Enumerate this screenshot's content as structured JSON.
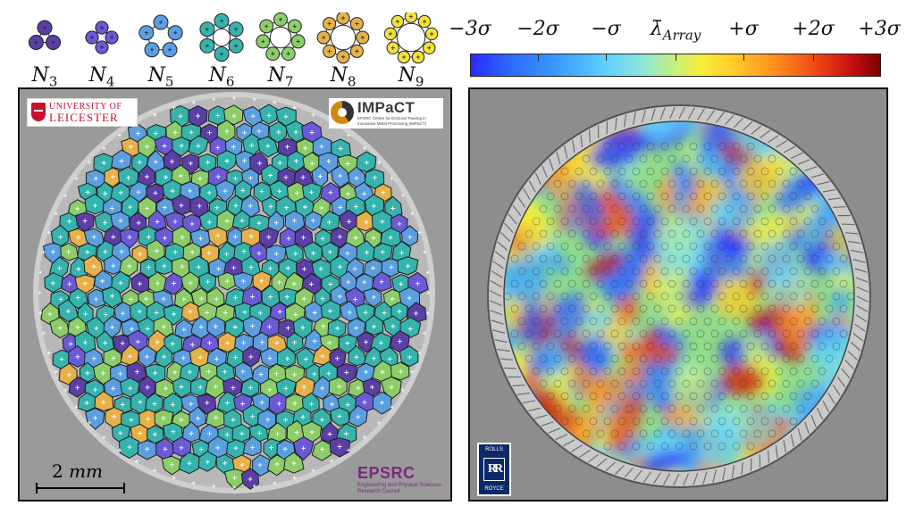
{
  "legend": {
    "items": [
      {
        "letter": "N",
        "sub": "3",
        "n": 3,
        "color": "#5b3fa6"
      },
      {
        "letter": "N",
        "sub": "4",
        "n": 4,
        "color": "#6a5ad6"
      },
      {
        "letter": "N",
        "sub": "5",
        "n": 5,
        "color": "#5b9fe0"
      },
      {
        "letter": "N",
        "sub": "6",
        "n": 6,
        "color": "#37b3ad"
      },
      {
        "letter": "N",
        "sub": "7",
        "n": 7,
        "color": "#8ccd6a"
      },
      {
        "letter": "N",
        "sub": "8",
        "n": 8,
        "color": "#e6b14a"
      },
      {
        "letter": "N",
        "sub": "9",
        "n": 9,
        "color": "#f2e13a"
      }
    ]
  },
  "colorbar": {
    "ticks": [
      "−3σ",
      "−2σ",
      "−σ",
      "λ̄",
      "+σ",
      "+2σ",
      "+3σ"
    ],
    "mean_subscript": "Array"
  },
  "left_panel": {
    "logo_leicester_line1": "UNIVERSITY OF",
    "logo_leicester_line2": "LEICESTER",
    "logo_impact_title": "IMPaCT",
    "logo_impact_sub": "EPSRC Centre for Doctoral Training in Innovative Metal Processing (IMPaCT)",
    "scale_value": "2",
    "scale_unit": "mm",
    "logo_epsrc_title": "EPSRC",
    "logo_epsrc_sub": "Engineering and Physical Sciences Research Council"
  },
  "right_panel": {
    "logo_rr_top": "ROLLS",
    "logo_rr_mark": "RR",
    "logo_rr_bottom": "ROYCE"
  },
  "colors": {
    "n3": "#5b3fa6",
    "n4": "#6a5ad6",
    "n5": "#5b9fe0",
    "n6": "#37b3ad",
    "n7": "#8ccd6a",
    "n8": "#e6b14a",
    "n9": "#f2e13a"
  }
}
